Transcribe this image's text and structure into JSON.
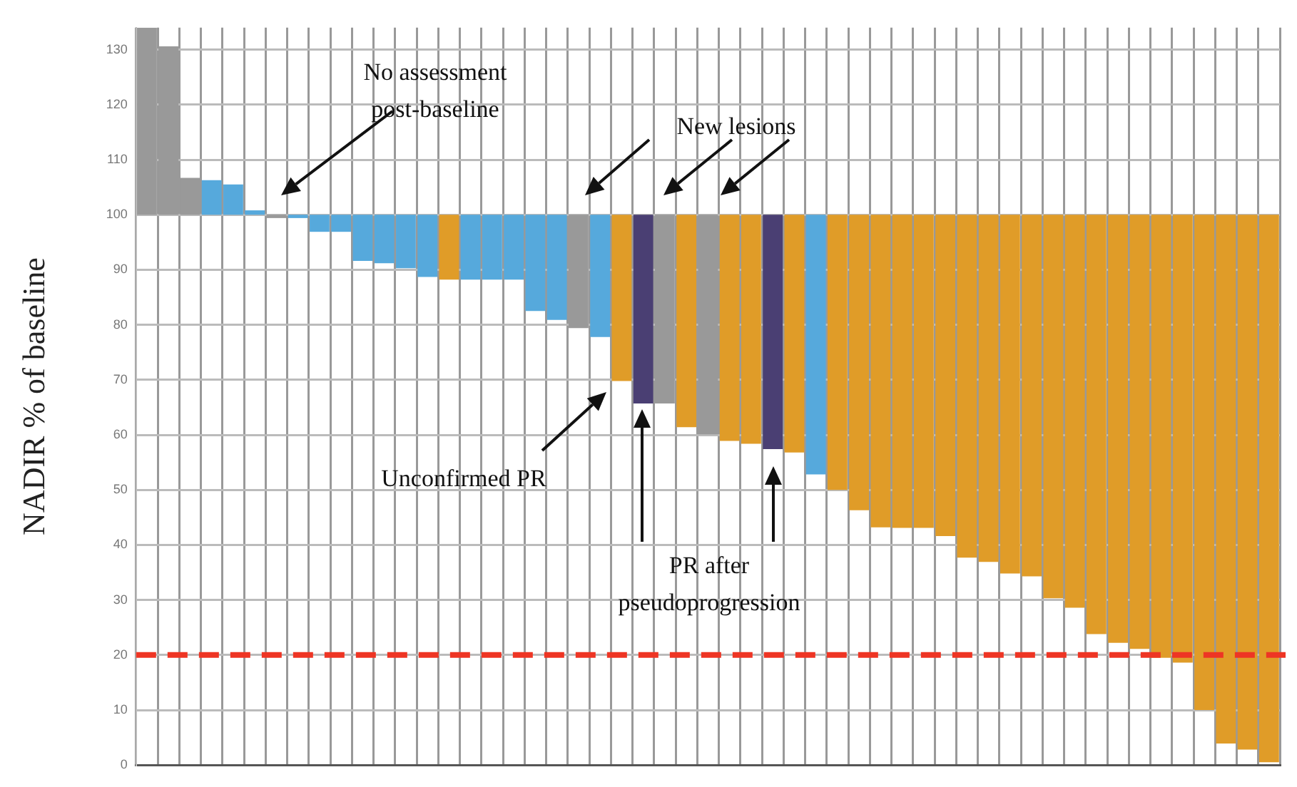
{
  "chart_data": {
    "type": "bar",
    "ylabel": "NADIR % of baseline",
    "categories": [
      null,
      null,
      null,
      null,
      null,
      null,
      null,
      null,
      null,
      null,
      null,
      null,
      null,
      null,
      null,
      null,
      null,
      null,
      null,
      null,
      null,
      null,
      null,
      null,
      null,
      null,
      null,
      null,
      null,
      null,
      null,
      null,
      null,
      null,
      null,
      null,
      null,
      null,
      null,
      null,
      null,
      null,
      null,
      null,
      null,
      null,
      null,
      null,
      null,
      null,
      null,
      null,
      null
    ],
    "base": [
      100,
      100,
      100,
      100,
      100,
      100,
      100,
      100,
      100,
      100,
      100,
      100,
      100,
      100,
      100,
      100,
      100,
      100,
      100,
      100,
      100,
      100,
      100,
      100,
      100,
      100,
      100,
      100,
      100,
      100,
      100,
      100,
      100,
      100,
      100,
      100,
      100,
      100,
      100,
      100,
      100,
      100,
      100,
      100,
      100,
      100,
      100,
      100,
      100,
      100,
      100,
      100,
      100
    ],
    "values": [
      34,
      30.6,
      6.7,
      6.3,
      5.5,
      0.8,
      -0.6,
      -0.6,
      -3.1,
      -3.1,
      -8.4,
      -8.8,
      -9.7,
      -11.3,
      -11.8,
      -11.8,
      -11.8,
      -11.8,
      -17.5,
      -19.1,
      -20.6,
      -22.2,
      -30.2,
      -34.3,
      -34.3,
      -38.6,
      -39.9,
      -41.1,
      -41.6,
      -42.6,
      -43.2,
      -47.2,
      -50,
      -53.7,
      -56.8,
      -56.9,
      -56.9,
      -58.4,
      -62.3,
      -63.1,
      -65.2,
      -65.7,
      -69.7,
      -71.4,
      -76.2,
      -77.8,
      -78.9,
      -80.5,
      -81.4,
      -90,
      -96.1,
      -97.2,
      -99.5
    ],
    "colors": [
      "#999999",
      "#999999",
      "#999999",
      "#56a9dc",
      "#56a9dc",
      "#56a9dc",
      "#999999",
      "#56a9dc",
      "#56a9dc",
      "#56a9dc",
      "#56a9dc",
      "#56a9dc",
      "#56a9dc",
      "#56a9dc",
      "#e09c28",
      "#56a9dc",
      "#56a9dc",
      "#56a9dc",
      "#56a9dc",
      "#56a9dc",
      "#999999",
      "#56a9dc",
      "#e09c28",
      "#4a3f73",
      "#999999",
      "#e09c28",
      "#999999",
      "#e09c28",
      "#e09c28",
      "#4a3f73",
      "#e09c28",
      "#56a9dc",
      "#e09c28",
      "#e09c28",
      "#e09c28",
      "#e09c28",
      "#e09c28",
      "#e09c28",
      "#e09c28",
      "#e09c28",
      "#e09c28",
      "#e09c28",
      "#e09c28",
      "#e09c28",
      "#e09c28",
      "#e09c28",
      "#e09c28",
      "#e09c28",
      "#e09c28",
      "#e09c28",
      "#e09c28",
      "#e09c28",
      "#e09c28"
    ],
    "ylim": [
      0,
      134
    ],
    "yticks": [
      0,
      10,
      20,
      30,
      40,
      50,
      60,
      70,
      80,
      90,
      100,
      110,
      120,
      130
    ],
    "grid": true,
    "tick_labels": "y",
    "ref_lines": [
      {
        "axis": "y",
        "value": 20,
        "color": "#ee3524",
        "line_style": "dashed"
      }
    ],
    "annotations": [
      "No assessment post-baseline",
      "New lesions",
      "Unconfirmed PR",
      "PR after pseudoprogression"
    ]
  }
}
